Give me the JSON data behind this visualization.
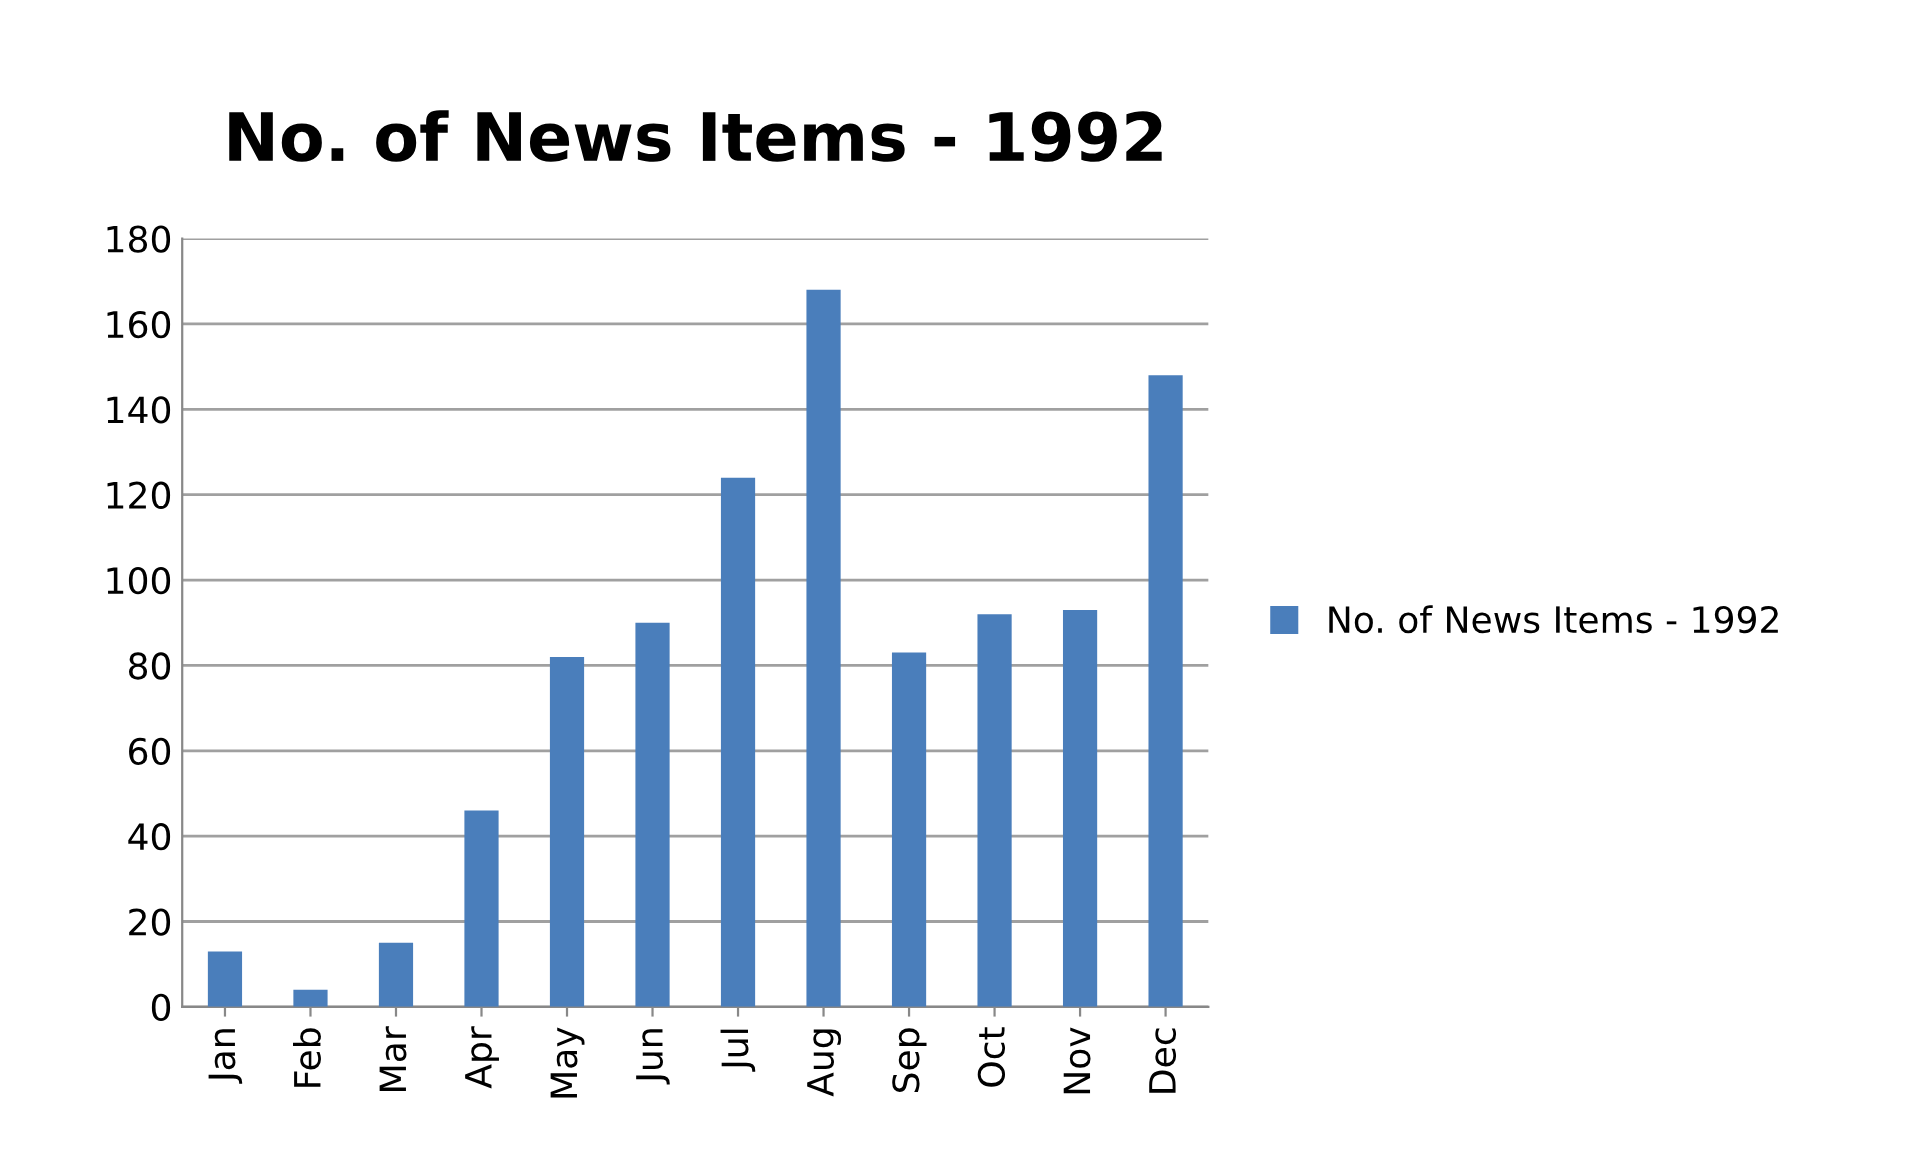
{
  "chart_data": {
    "type": "bar",
    "title": "No. of News Items - 1992",
    "categories": [
      "Jan",
      "Feb",
      "Mar",
      "Apr",
      "May",
      "Jun",
      "Jul",
      "Aug",
      "Sep",
      "Oct",
      "Nov",
      "Dec"
    ],
    "series": [
      {
        "name": "No. of News Items - 1992",
        "color": "#4a7ebb",
        "values": [
          13,
          4,
          15,
          46,
          82,
          90,
          124,
          168,
          83,
          92,
          93,
          148
        ]
      }
    ],
    "ylim": [
      0,
      180
    ],
    "yticks": [
      0,
      20,
      40,
      60,
      80,
      100,
      120,
      140,
      160,
      180
    ],
    "grid": "y",
    "legend": "right"
  }
}
